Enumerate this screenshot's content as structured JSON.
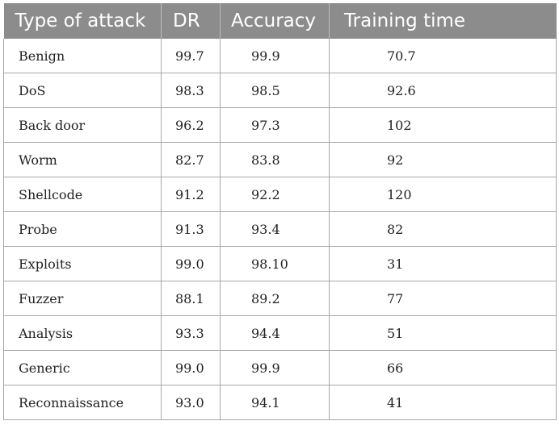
{
  "table": {
    "headers": [
      "Type of attack",
      "DR",
      "Accuracy",
      "Training time"
    ],
    "rows": [
      {
        "type": "Benign",
        "dr": "99.7",
        "accuracy": "99.9",
        "training_time": "70.7"
      },
      {
        "type": "DoS",
        "dr": "98.3",
        "accuracy": "98.5",
        "training_time": "92.6"
      },
      {
        "type": "Back door",
        "dr": "96.2",
        "accuracy": "97.3",
        "training_time": "102"
      },
      {
        "type": "Worm",
        "dr": "82.7",
        "accuracy": "83.8",
        "training_time": "92"
      },
      {
        "type": "Shellcode",
        "dr": "91.2",
        "accuracy": "92.2",
        "training_time": "120"
      },
      {
        "type": "Probe",
        "dr": "91.3",
        "accuracy": "93.4",
        "training_time": "82"
      },
      {
        "type": "Exploits",
        "dr": "99.0",
        "accuracy": "98.10",
        "training_time": "31"
      },
      {
        "type": "Fuzzer",
        "dr": "88.1",
        "accuracy": "89.2",
        "training_time": "77"
      },
      {
        "type": "Analysis",
        "dr": "93.3",
        "accuracy": "94.4",
        "training_time": "51"
      },
      {
        "type": "Generic",
        "dr": "99.0",
        "accuracy": "99.9",
        "training_time": "66"
      },
      {
        "type": "Reconnaissance",
        "dr": "93.0",
        "accuracy": "94.1",
        "training_time": "41"
      }
    ]
  },
  "colors": {
    "header_background": "#8c8c8c",
    "header_text": "#ffffff",
    "border": "#a8a8a8"
  }
}
